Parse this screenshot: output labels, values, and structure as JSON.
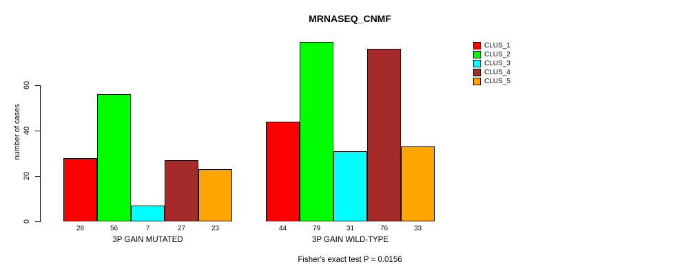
{
  "title": "MRNASEQ_CNMF",
  "caption": "Fisher's exact test P = 0.0156",
  "y_axis": {
    "label": "number of cases",
    "ticks": [
      0,
      20,
      40,
      60
    ]
  },
  "chart_data": {
    "type": "bar",
    "title": "MRNASEQ_CNMF",
    "ylabel": "number of cases",
    "xlabel": "",
    "categories": [
      "3P GAIN MUTATED",
      "3P GAIN WILD-TYPE"
    ],
    "series": [
      {
        "name": "CLUS_1",
        "color": "#ff0000",
        "values": [
          28,
          44
        ]
      },
      {
        "name": "CLUS_2",
        "color": "#00ff00",
        "values": [
          56,
          79
        ]
      },
      {
        "name": "CLUS_3",
        "color": "#00ffff",
        "values": [
          7,
          31
        ]
      },
      {
        "name": "CLUS_4",
        "color": "#a52a2a",
        "values": [
          27,
          76
        ]
      },
      {
        "name": "CLUS_5",
        "color": "#ffa500",
        "values": [
          23,
          33
        ]
      }
    ],
    "bar_value_labels": [
      [
        28,
        56,
        7,
        27,
        23
      ],
      [
        44,
        79,
        31,
        76,
        33
      ]
    ],
    "ylim": [
      0,
      80
    ],
    "yticks": [
      0,
      20,
      40,
      60
    ],
    "grid": false,
    "legend_position": "right",
    "annotation": "Fisher's exact test P = 0.0156"
  },
  "colors": {
    "axis": "#000000",
    "bar_border": "#000000",
    "background": "#ffffff"
  }
}
